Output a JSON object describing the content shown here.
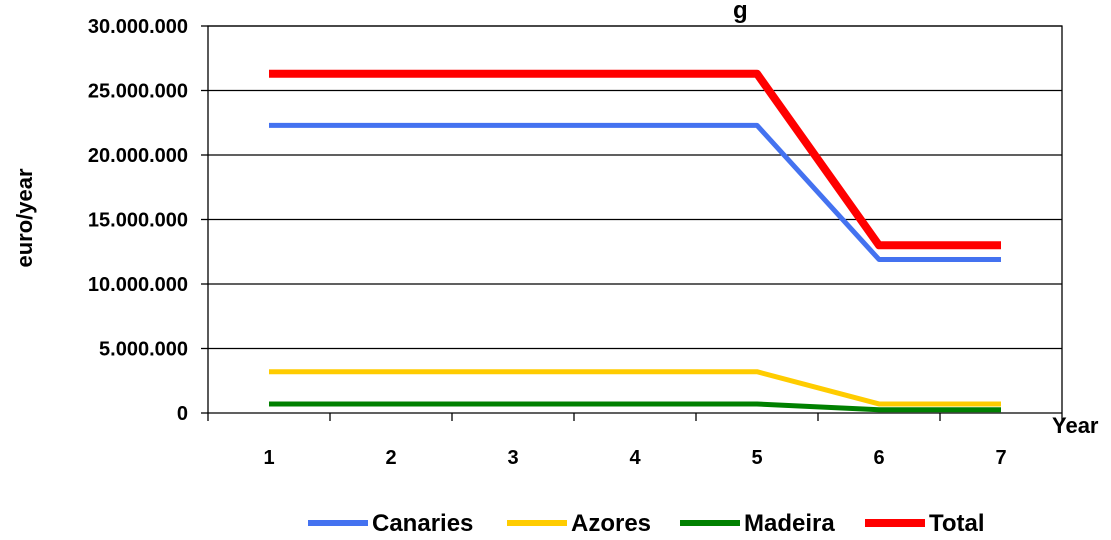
{
  "chart_data": {
    "type": "line",
    "title": "g",
    "xlabel": "Year",
    "ylabel": "euro/year",
    "categories": [
      "1",
      "2",
      "3",
      "4",
      "5",
      "6",
      "7"
    ],
    "y_tick_labels": [
      "0",
      "5.000.000",
      "10.000.000",
      "15.000.000",
      "20.000.000",
      "25.000.000",
      "30.000.000"
    ],
    "y_ticks": [
      0,
      5000000,
      10000000,
      15000000,
      20000000,
      25000000,
      30000000
    ],
    "ylim": [
      0,
      30000000
    ],
    "grid": true,
    "legend_position": "bottom",
    "series": [
      {
        "name": "Canaries",
        "color": "#4472F0",
        "values": [
          22300000,
          22300000,
          22300000,
          22300000,
          22300000,
          11900000,
          11900000
        ]
      },
      {
        "name": "Azores",
        "color": "#FFCC00",
        "values": [
          3200000,
          3200000,
          3200000,
          3200000,
          3200000,
          700000,
          700000
        ]
      },
      {
        "name": "Madeira",
        "color": "#008000",
        "values": [
          700000,
          700000,
          700000,
          700000,
          700000,
          250000,
          250000
        ]
      },
      {
        "name": "Total",
        "color": "#FF0000",
        "values": [
          26300000,
          26300000,
          26300000,
          26300000,
          26300000,
          13000000,
          13000000
        ]
      }
    ]
  }
}
